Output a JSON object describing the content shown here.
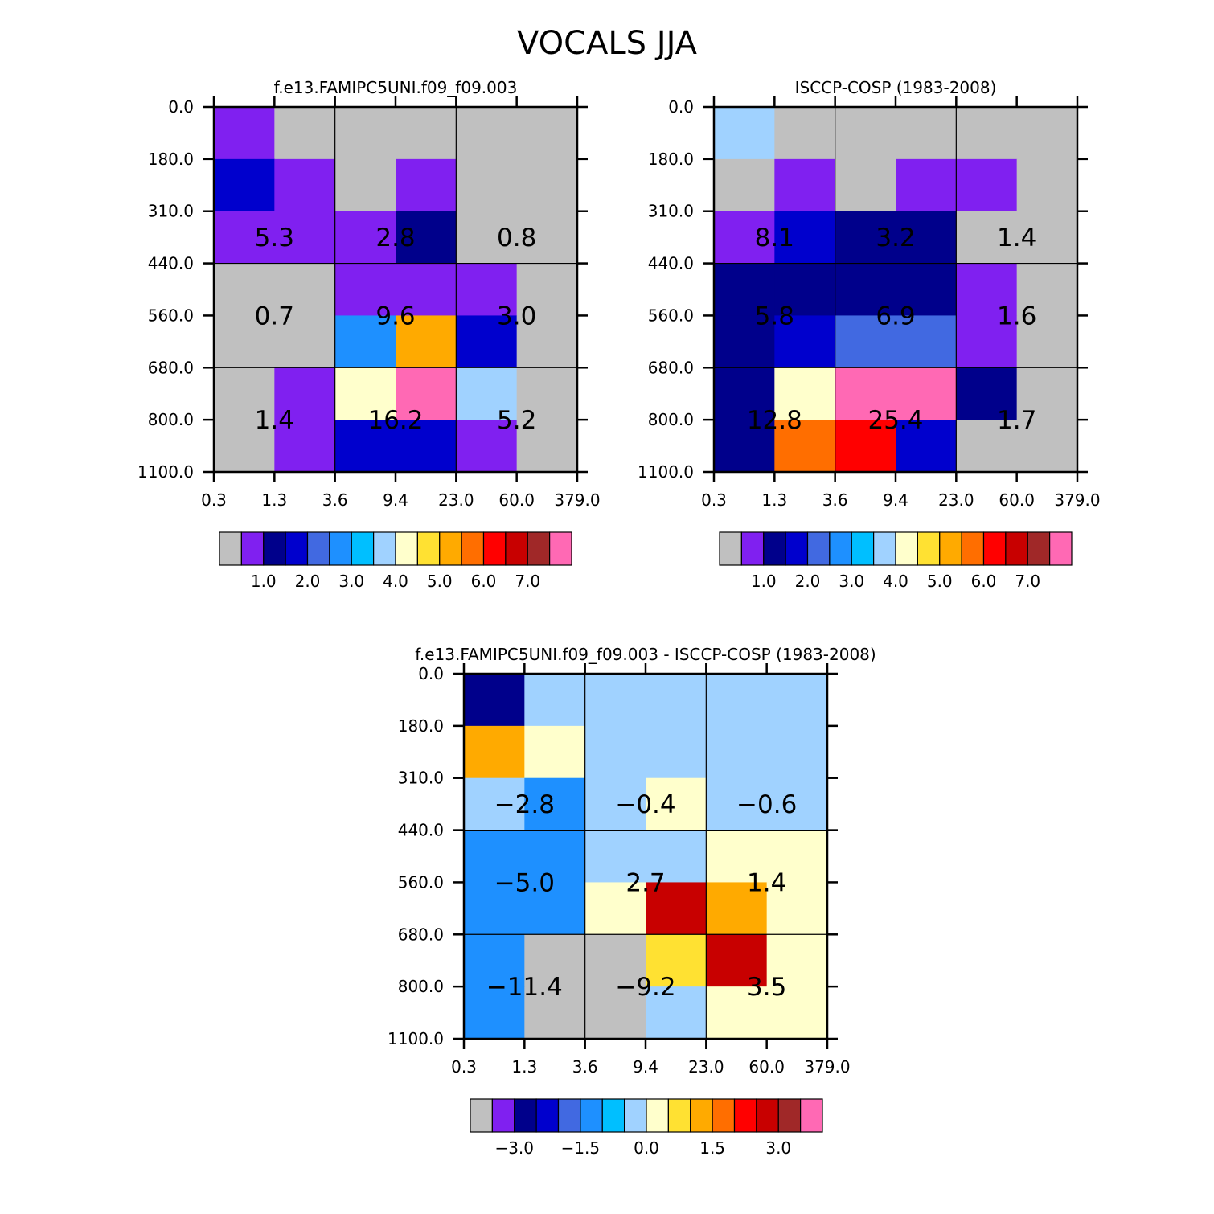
{
  "title": "VOCALS JJA",
  "palette": {
    "fill": "#c0c0c0",
    "colors": [
      "#8020f0",
      "#00008b",
      "#0000cd",
      "#4169e1",
      "#1e90ff",
      "#00bfff",
      "#a0d2ff",
      "#ffffcc",
      "#ffe132",
      "#ffaa00",
      "#ff6e00",
      "#ff0000",
      "#c80000",
      "#a02828",
      "#ff69b4"
    ]
  },
  "axes": {
    "x_ticks": [
      "0.3",
      "1.3",
      "3.6",
      "9.4",
      "23.0",
      "60.0",
      "379.0"
    ],
    "y_ticks": [
      "0.0",
      "180.0",
      "310.0",
      "440.0",
      "560.0",
      "680.0",
      "800.0",
      "1100.0"
    ]
  },
  "chart_data": [
    {
      "type": "heatmap",
      "title": "f.e13.FAMIPC5UNI.f09_f09.003",
      "grid_color_index": [
        [
          0,
          -1,
          -1,
          -1,
          -1,
          -1
        ],
        [
          2,
          0,
          -1,
          0,
          -1,
          -1
        ],
        [
          0,
          0,
          0,
          1,
          -1,
          -1
        ],
        [
          -1,
          -1,
          0,
          0,
          0,
          -1
        ],
        [
          -1,
          -1,
          4,
          9,
          2,
          -1
        ],
        [
          -1,
          0,
          7,
          14,
          6,
          -1
        ],
        [
          -1,
          0,
          2,
          2,
          0,
          -1
        ]
      ],
      "box_values": [
        [
          "5.3",
          "2.8",
          "0.8"
        ],
        [
          "0.7",
          "9.6",
          "3.0"
        ],
        [
          "1.4",
          "16.2",
          "5.2"
        ]
      ],
      "colorbar_labels": [
        "1.0",
        "2.0",
        "3.0",
        "4.0",
        "5.0",
        "6.0",
        "7.0"
      ]
    },
    {
      "type": "heatmap",
      "title": "ISCCP-COSP (1983-2008)",
      "grid_color_index": [
        [
          6,
          -1,
          -1,
          -1,
          -1,
          -1
        ],
        [
          -1,
          0,
          -1,
          0,
          0,
          -1
        ],
        [
          0,
          2,
          1,
          1,
          -1,
          -1
        ],
        [
          1,
          1,
          1,
          1,
          0,
          -1
        ],
        [
          1,
          2,
          3,
          3,
          0,
          -1
        ],
        [
          1,
          7,
          14,
          14,
          1,
          -1
        ],
        [
          1,
          10,
          11,
          2,
          -1,
          -1
        ]
      ],
      "box_values": [
        [
          "8.1",
          "3.2",
          "1.4"
        ],
        [
          "5.8",
          "6.9",
          "1.6"
        ],
        [
          "12.8",
          "25.4",
          "1.7"
        ]
      ],
      "colorbar_labels": [
        "1.0",
        "2.0",
        "3.0",
        "4.0",
        "5.0",
        "6.0",
        "7.0"
      ]
    },
    {
      "type": "heatmap",
      "title": "f.e13.FAMIPC5UNI.f09_f09.003 - ISCCP-COSP (1983-2008)",
      "grid_color_index": [
        [
          1,
          6,
          6,
          6,
          6,
          6
        ],
        [
          9,
          7,
          6,
          6,
          6,
          6
        ],
        [
          6,
          4,
          6,
          7,
          6,
          6
        ],
        [
          4,
          4,
          6,
          6,
          7,
          7
        ],
        [
          4,
          4,
          7,
          12,
          9,
          7
        ],
        [
          4,
          -1,
          -1,
          8,
          12,
          7
        ],
        [
          4,
          -1,
          -1,
          6,
          7,
          7
        ]
      ],
      "box_values": [
        [
          "-2.8",
          "-0.4",
          "-0.6"
        ],
        [
          "-5.0",
          "2.7",
          "1.4"
        ],
        [
          "-11.4",
          "-9.2",
          "3.5"
        ]
      ],
      "colorbar_labels": [
        "-3.0",
        "-1.5",
        "0.0",
        "1.5",
        "3.0"
      ]
    }
  ]
}
